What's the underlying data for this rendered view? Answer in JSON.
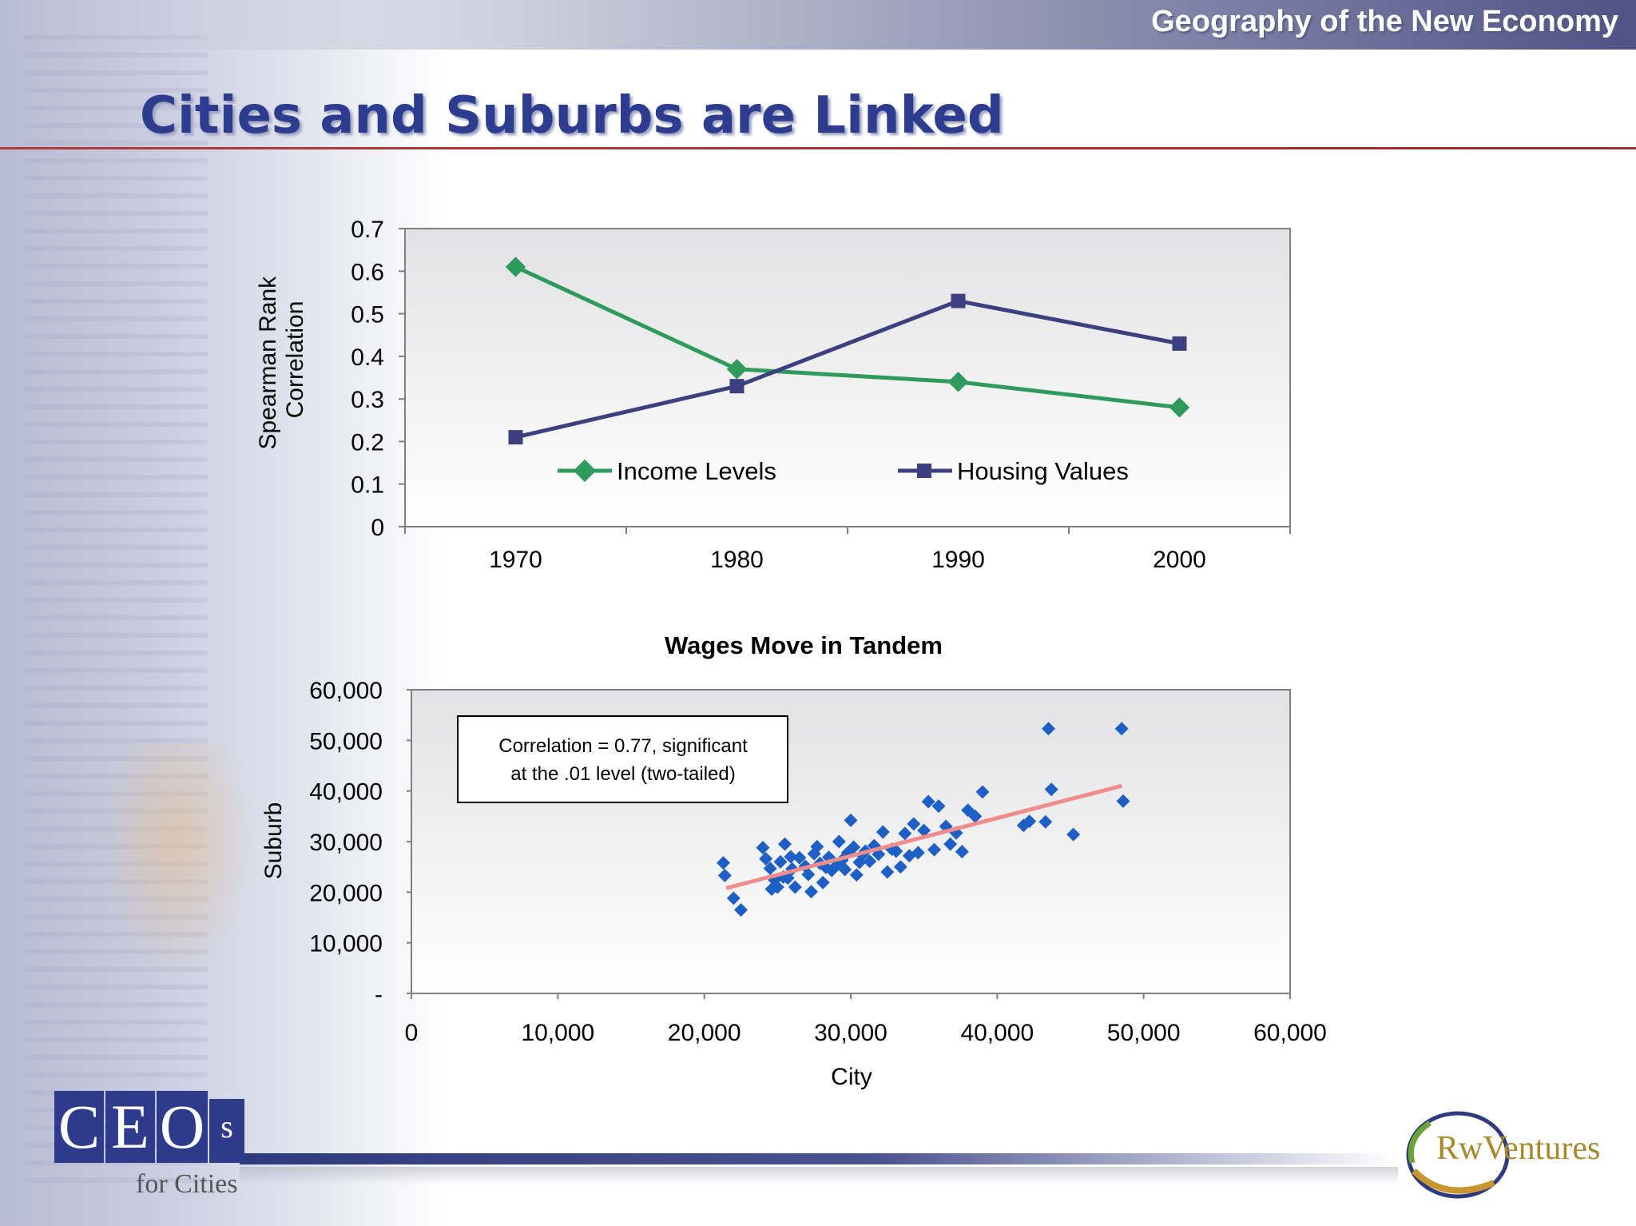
{
  "header": {
    "title": "Geography of the New Economy"
  },
  "page": {
    "title": "Cities and Suburbs are Linked"
  },
  "colors": {
    "income": "#2e9a5c",
    "housing": "#3c3f80",
    "scatter": "#1d5fc4",
    "trend": "#f08c8c",
    "title": "#2e3c8f"
  },
  "chart_data": [
    {
      "type": "line",
      "title": "",
      "xlabel": "",
      "ylabel": "Spearman Rank Correlation",
      "ylabel_lines": [
        "Spearman Rank",
        "Correlation"
      ],
      "categories": [
        "1970",
        "1980",
        "1990",
        "2000"
      ],
      "ylim": [
        0,
        0.7
      ],
      "yticks": [
        "0",
        "0.1",
        "0.2",
        "0.3",
        "0.4",
        "0.5",
        "0.6",
        "0.7"
      ],
      "legend_position": "inside-bottom",
      "series": [
        {
          "name": "Income Levels",
          "marker": "diamond",
          "values": [
            0.61,
            0.37,
            0.34,
            0.28
          ]
        },
        {
          "name": "Housing Values",
          "marker": "square",
          "values": [
            0.21,
            0.33,
            0.53,
            0.43
          ]
        }
      ]
    },
    {
      "type": "scatter",
      "title": "Wages Move in Tandem",
      "xlabel": "City",
      "ylabel": "Suburb",
      "xlim": [
        0,
        60000
      ],
      "ylim": [
        0,
        60000
      ],
      "xticks": [
        "0",
        "10,000",
        "20,000",
        "30,000",
        "40,000",
        "50,000",
        "60,000"
      ],
      "yticks": [
        "-",
        "10,000",
        "20,000",
        "30,000",
        "40,000",
        "50,000",
        "60,000"
      ],
      "annotation": [
        "Correlation = 0.77, significant",
        "at the .01 level (two-tailed)"
      ],
      "trendline": {
        "x": [
          21500,
          48500
        ],
        "y": [
          20800,
          41000
        ]
      },
      "points": [
        [
          21300,
          25800
        ],
        [
          21400,
          23300
        ],
        [
          22000,
          18800
        ],
        [
          22500,
          16500
        ],
        [
          24000,
          28800
        ],
        [
          24200,
          26600
        ],
        [
          24500,
          24700
        ],
        [
          24600,
          20600
        ],
        [
          24800,
          22400
        ],
        [
          25000,
          21000
        ],
        [
          25200,
          26000
        ],
        [
          25400,
          23000
        ],
        [
          25500,
          29500
        ],
        [
          25700,
          22800
        ],
        [
          25900,
          27000
        ],
        [
          26000,
          24600
        ],
        [
          26200,
          21000
        ],
        [
          26500,
          26800
        ],
        [
          26900,
          25100
        ],
        [
          27100,
          23500
        ],
        [
          27300,
          20100
        ],
        [
          27500,
          27600
        ],
        [
          27700,
          29000
        ],
        [
          27900,
          25700
        ],
        [
          28100,
          21900
        ],
        [
          28300,
          24900
        ],
        [
          28500,
          26900
        ],
        [
          28700,
          24300
        ],
        [
          29000,
          25200
        ],
        [
          29200,
          30000
        ],
        [
          29400,
          26300
        ],
        [
          29600,
          24500
        ],
        [
          29800,
          27800
        ],
        [
          30000,
          34200
        ],
        [
          30200,
          28900
        ],
        [
          30400,
          23400
        ],
        [
          30600,
          25900
        ],
        [
          30800,
          27400
        ],
        [
          31000,
          28100
        ],
        [
          31300,
          26100
        ],
        [
          31600,
          29200
        ],
        [
          31900,
          27500
        ],
        [
          32200,
          31900
        ],
        [
          32500,
          24000
        ],
        [
          32800,
          28500
        ],
        [
          33100,
          28100
        ],
        [
          33400,
          25000
        ],
        [
          33700,
          31600
        ],
        [
          34000,
          27200
        ],
        [
          34300,
          33500
        ],
        [
          34600,
          27800
        ],
        [
          35000,
          32200
        ],
        [
          35300,
          37900
        ],
        [
          35700,
          28400
        ],
        [
          36000,
          37000
        ],
        [
          36500,
          33000
        ],
        [
          36800,
          29500
        ],
        [
          37200,
          31700
        ],
        [
          37600,
          28000
        ],
        [
          38000,
          36200
        ],
        [
          38500,
          35000
        ],
        [
          39000,
          39800
        ],
        [
          41800,
          33200
        ],
        [
          42200,
          34000
        ],
        [
          43300,
          33900
        ],
        [
          43500,
          52300
        ],
        [
          43700,
          40300
        ],
        [
          45200,
          31400
        ],
        [
          48500,
          52300
        ],
        [
          48600,
          38000
        ]
      ]
    }
  ]
}
